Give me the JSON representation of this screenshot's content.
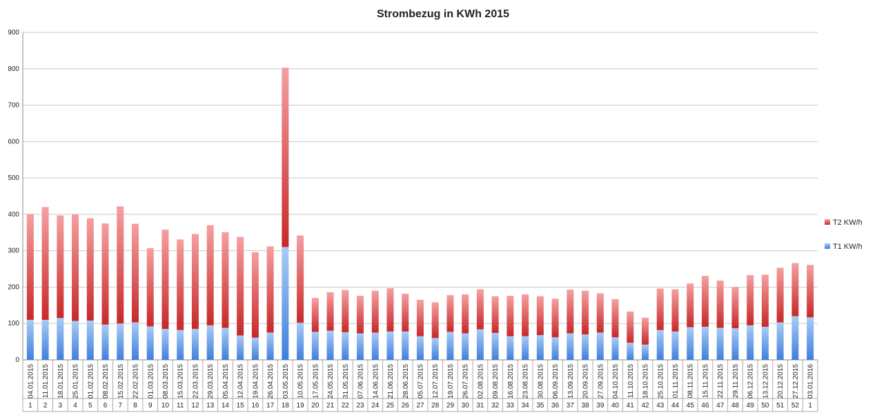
{
  "chart_data": {
    "type": "bar",
    "stacked": true,
    "title": "Strombezug in KWh 2015",
    "xlabel": "",
    "ylabel": "",
    "ylim": [
      0,
      900
    ],
    "yticks": [
      0,
      100,
      200,
      300,
      400,
      500,
      600,
      700,
      800,
      900
    ],
    "grid": true,
    "legend_position": "right",
    "categories": [
      "04.01.2015",
      "11.01.2015",
      "18.01.2015",
      "25.01.2015",
      "01.02.2015",
      "08.02.2015",
      "15.02.2015",
      "22.02.2015",
      "01.03.2015",
      "08.03.2015",
      "15.03.2015",
      "22.03.2015",
      "29.03.2015",
      "05.04.2015",
      "12.04.2015",
      "19.04.2015",
      "26.04.2015",
      "03.05.2015",
      "10.05.2015",
      "17.05.2015",
      "24.05.2015",
      "31.05.2015",
      "07.06.2015",
      "14.06.2015",
      "21.06.2015",
      "28.06.2015",
      "05.07.2015",
      "12.07.2015",
      "19.07.2015",
      "26.07.2015",
      "02.08.2015",
      "09.08.2015",
      "16.08.2015",
      "23.08.2015",
      "30.08.2015",
      "06.09.2015",
      "13.09.2015",
      "20.09.2015",
      "27.09.2015",
      "04.10.2015",
      "11.10.2015",
      "18.10.2015",
      "25.10.2015",
      "01.11.2015",
      "08.11.2015",
      "15.11.2015",
      "22.11.2015",
      "29.11.2015",
      "06.12.2015",
      "13.12.2015",
      "20.12.2015",
      "27.12.2015",
      "03.01.2016"
    ],
    "weeks": [
      "1",
      "2",
      "3",
      "4",
      "5",
      "6",
      "7",
      "8",
      "9",
      "10",
      "11",
      "12",
      "13",
      "14",
      "15",
      "16",
      "17",
      "18",
      "19",
      "20",
      "21",
      "22",
      "23",
      "24",
      "25",
      "26",
      "27",
      "28",
      "29",
      "30",
      "31",
      "32",
      "33",
      "34",
      "35",
      "36",
      "37",
      "38",
      "39",
      "40",
      "41",
      "42",
      "43",
      "44",
      "45",
      "46",
      "47",
      "48",
      "49",
      "50",
      "51",
      "52",
      "1"
    ],
    "series": [
      {
        "name": "T1 KW/h",
        "color": "#5b95e0",
        "values": [
          110,
          110,
          115,
          107,
          108,
          97,
          100,
          103,
          92,
          85,
          82,
          85,
          95,
          88,
          67,
          61,
          75,
          310,
          102,
          77,
          80,
          76,
          73,
          75,
          78,
          78,
          65,
          60,
          77,
          73,
          84,
          74,
          65,
          65,
          68,
          62,
          73,
          70,
          75,
          62,
          47,
          42,
          82,
          78,
          90,
          91,
          88,
          87,
          95,
          91,
          103,
          120,
          117
        ]
      },
      {
        "name": "T2 KW/h",
        "color": "#d83c3c",
        "values": [
          291,
          310,
          282,
          293,
          281,
          278,
          322,
          271,
          215,
          273,
          249,
          261,
          275,
          263,
          271,
          235,
          237,
          493,
          240,
          93,
          106,
          116,
          103,
          115,
          119,
          104,
          100,
          98,
          101,
          107,
          110,
          101,
          111,
          115,
          107,
          106,
          120,
          120,
          108,
          105,
          86,
          74,
          114,
          116,
          120,
          140,
          130,
          113,
          138,
          143,
          150,
          146,
          144
        ]
      }
    ]
  }
}
